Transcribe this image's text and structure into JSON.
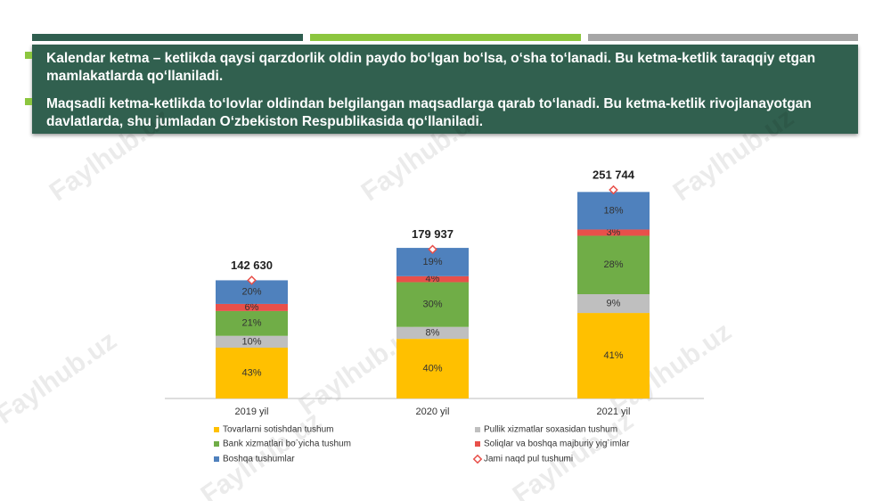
{
  "paragraphs": [
    "Kalendar ketma – ketlikda qaysi qarzdorlik oldin paydo bo‘lgan bo‘lsa, o‘sha to‘lanadi. Bu ketma-ketlik taraqqiy etgan mamlakatlarda qo‘llaniladi.",
    "Maqsadli ketma-ketlikda to‘lovlar oldindan belgilangan maqsadlarga qarab to‘lanadi. Bu ketma-ketlik rivojlanayotgan davlatlarda, shu jumladan O‘zbekiston Respublikasida qo‘llaniladi."
  ],
  "watermark": "Faylhub.uz",
  "chart_data": {
    "type": "stacked_bar",
    "categories": [
      "2019 yil",
      "2020 yil",
      "2021 yil"
    ],
    "series": [
      {
        "name": "Tovarlarni sotishdan tushum",
        "color": "#ffc000",
        "values": [
          43,
          40,
          41
        ],
        "value_labels": [
          "43%",
          "40%",
          "41%"
        ]
      },
      {
        "name": "Pullik xizmatlar soxasidan tushum",
        "color": "#bfbfbf",
        "values": [
          10,
          8,
          9
        ],
        "value_labels": [
          "10%",
          "8%",
          "9%"
        ]
      },
      {
        "name": "Bank xizmatlari bo`yicha tushum",
        "color": "#70ad47",
        "values": [
          21,
          30,
          28
        ],
        "value_labels": [
          "21%",
          "30%",
          "28%"
        ]
      },
      {
        "name": "Soliqlar va boshqa majburiy yig`imlar",
        "color": "#e8504a",
        "values": [
          6,
          4,
          3
        ],
        "value_labels": [
          "6%",
          "4%",
          "3%"
        ]
      },
      {
        "name": "Boshqa tushumlar",
        "color": "#4f81bd",
        "values": [
          20,
          19,
          18
        ],
        "value_labels": [
          "20%",
          "19%",
          "18%"
        ]
      }
    ],
    "totals": {
      "name": "Jami naqd pul tushumi",
      "color": "#e8504a",
      "values": [
        142630,
        179937,
        251744
      ],
      "value_labels": [
        "142 630",
        "179 937",
        "251 744"
      ]
    }
  }
}
